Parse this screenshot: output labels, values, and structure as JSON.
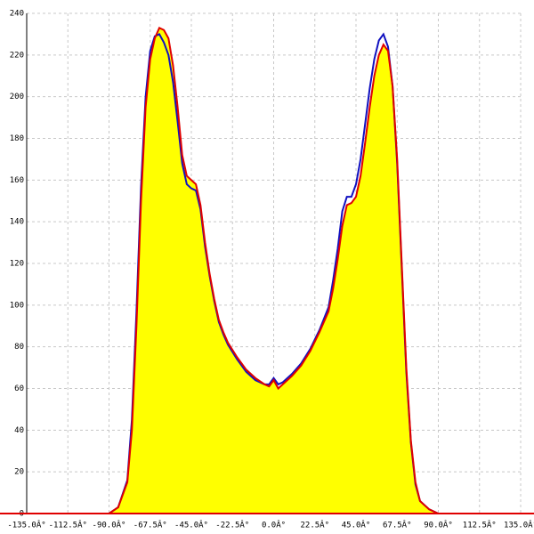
{
  "chart_data": {
    "type": "line",
    "x": [
      -135,
      -95,
      -90,
      -85,
      -80,
      -77.5,
      -75,
      -72.5,
      -70,
      -67.5,
      -65,
      -62.5,
      -60,
      -57.5,
      -55,
      -52.5,
      -50,
      -47.5,
      -45,
      -42.5,
      -40,
      -37.5,
      -35,
      -32.5,
      -30,
      -27.5,
      -25,
      -20,
      -15,
      -10,
      -5,
      -2.5,
      0,
      2.5,
      5,
      10,
      15,
      20,
      25,
      30,
      32.5,
      35,
      37.5,
      40,
      42.5,
      45,
      47.5,
      50,
      52.5,
      55,
      57.5,
      60,
      62.5,
      65,
      67.5,
      70,
      72.5,
      75,
      77.5,
      80,
      85,
      90,
      95,
      135
    ],
    "series": [
      {
        "color": "#1010c0",
        "values": [
          0,
          0,
          0,
          3,
          16,
          45,
          97,
          157,
          200,
          222,
          229,
          230,
          226,
          220,
          207,
          188,
          168,
          158,
          156,
          155,
          146,
          128,
          114,
          102,
          92,
          86,
          81,
          74,
          68,
          64,
          62,
          62,
          65,
          62,
          63,
          67,
          72,
          79,
          88,
          99,
          112,
          127,
          145,
          152,
          152,
          158,
          170,
          187,
          204,
          218,
          227,
          230,
          224,
          205,
          168,
          118,
          68,
          34,
          14,
          6,
          2,
          0,
          0,
          0
        ]
      },
      {
        "color": "#e00000",
        "fill": "#ffff00",
        "values": [
          0,
          0,
          0,
          3,
          15,
          40,
          90,
          150,
          195,
          218,
          228,
          233,
          232,
          228,
          215,
          195,
          172,
          162,
          160,
          158,
          148,
          130,
          115,
          103,
          93,
          87,
          82,
          75,
          69,
          65,
          62,
          61,
          64,
          60,
          62,
          66,
          71,
          78,
          87,
          97,
          108,
          122,
          138,
          148,
          149,
          152,
          162,
          178,
          195,
          210,
          220,
          225,
          222,
          205,
          170,
          120,
          70,
          35,
          15,
          6,
          2,
          0,
          0,
          0
        ]
      }
    ],
    "xlim": [
      -135,
      135
    ],
    "xticks": [
      {
        "value": -135,
        "label": "-135.0Â°"
      },
      {
        "value": -112.5,
        "label": "-112.5Â°"
      },
      {
        "value": -90,
        "label": "-90.0Â°"
      },
      {
        "value": -67.5,
        "label": "-67.5Â°"
      },
      {
        "value": -45,
        "label": "-45.0Â°"
      },
      {
        "value": -22.5,
        "label": "-22.5Â°"
      },
      {
        "value": 0,
        "label": "0.0Â°"
      },
      {
        "value": 22.5,
        "label": "22.5Â°"
      },
      {
        "value": 45,
        "label": "45.0Â°"
      },
      {
        "value": 67.5,
        "label": "67.5Â°"
      },
      {
        "value": 90,
        "label": "90.0Â°"
      },
      {
        "value": 112.5,
        "label": "112.5Â°"
      },
      {
        "value": 135,
        "label": "135.0Â°"
      }
    ],
    "ylim": [
      0,
      240
    ],
    "yticks": [
      0,
      20,
      40,
      60,
      80,
      100,
      120,
      140,
      160,
      180,
      200,
      220,
      240
    ],
    "grid": true
  }
}
